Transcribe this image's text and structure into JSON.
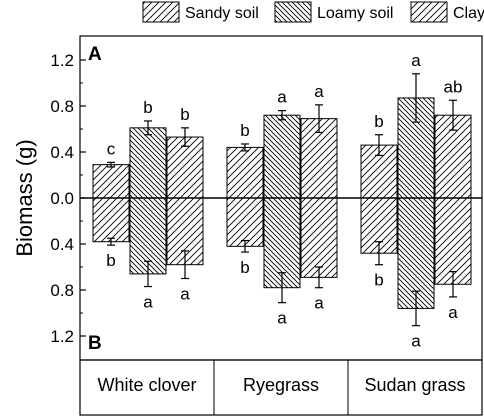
{
  "chart_data": {
    "type": "bar",
    "ylabel": "Biomass (g)",
    "panels": [
      "A",
      "B"
    ],
    "categories": [
      "White clover",
      "Ryegrass",
      "Sudan grass"
    ],
    "legend": {
      "placement": "top",
      "entries": [
        "Sandy soil",
        "Loamy soil",
        "Clay soil"
      ]
    },
    "y_tick_labels": [
      "1.2",
      "0.8",
      "0.4",
      "0.0",
      "0.4",
      "0.8",
      "1.2"
    ],
    "ylim_top": [
      0,
      1.3
    ],
    "ylim_bottom": [
      0,
      1.3
    ],
    "series": [
      {
        "name": "Sandy soil",
        "A": {
          "values": [
            0.29,
            0.44,
            0.46
          ],
          "errors": [
            0.02,
            0.03,
            0.09
          ],
          "letters": [
            "c",
            "b",
            "b"
          ]
        },
        "B": {
          "values": [
            0.38,
            0.42,
            0.48
          ],
          "errors": [
            0.03,
            0.05,
            0.1
          ],
          "letters": [
            "b",
            "b",
            "b"
          ]
        }
      },
      {
        "name": "Loamy soil",
        "A": {
          "values": [
            0.61,
            0.72,
            0.87
          ],
          "errors": [
            0.06,
            0.04,
            0.21
          ],
          "letters": [
            "b",
            "a",
            "a"
          ]
        },
        "B": {
          "values": [
            0.66,
            0.78,
            0.96
          ],
          "errors": [
            0.11,
            0.13,
            0.15
          ],
          "letters": [
            "a",
            "a",
            "a"
          ]
        }
      },
      {
        "name": "Clay soil",
        "A": {
          "values": [
            0.53,
            0.69,
            0.72
          ],
          "errors": [
            0.08,
            0.12,
            0.13
          ],
          "letters": [
            "b",
            "a",
            "ab"
          ]
        },
        "B": {
          "values": [
            0.58,
            0.69,
            0.75
          ],
          "errors": [
            0.12,
            0.09,
            0.11
          ],
          "letters": [
            "a",
            "a",
            "a"
          ]
        }
      }
    ]
  }
}
